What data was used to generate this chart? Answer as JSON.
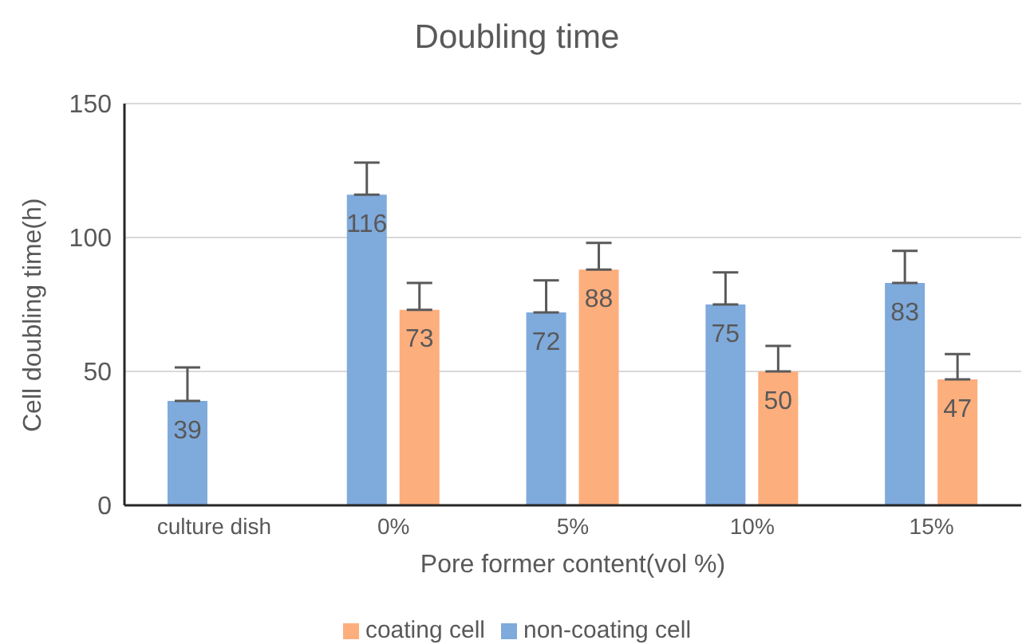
{
  "chart_data": {
    "type": "bar",
    "title": "Doubling time",
    "xlabel": "Pore former content(vol %)",
    "ylabel": "Cell doubling time(h)",
    "categories": [
      "culture dish",
      "0%",
      "5%",
      "10%",
      "15%"
    ],
    "series": [
      {
        "name": "non-coating cell",
        "color": "#7faadc",
        "values": [
          39,
          116,
          72,
          75,
          83
        ],
        "errors": [
          12.5,
          12,
          12,
          12,
          12
        ]
      },
      {
        "name": "coating cell",
        "color": "#fdae7d",
        "values": [
          null,
          73,
          88,
          50,
          47
        ],
        "errors": [
          null,
          10,
          10,
          9.5,
          9.5
        ]
      }
    ],
    "ylim": [
      0,
      150
    ],
    "yticks": [
      0,
      50,
      100,
      150
    ],
    "grid": "y",
    "legend": "bottom",
    "data_labels": true
  }
}
